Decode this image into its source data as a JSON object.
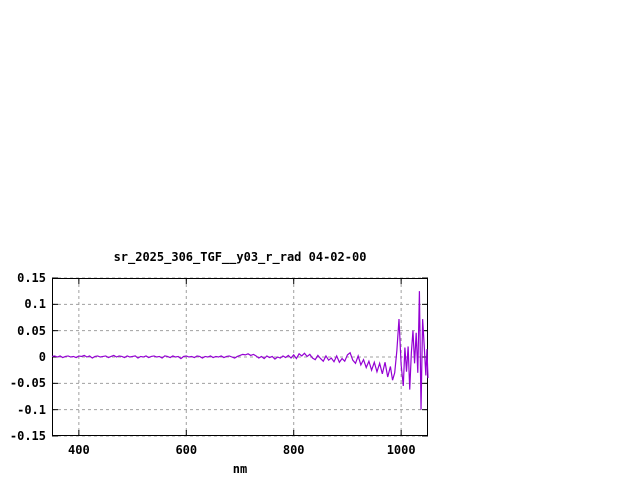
{
  "page": {
    "background": "#ffffff"
  },
  "chart_data": {
    "type": "line",
    "title": "sr_2025_306_TGF__y03_r_rad 04-02-00",
    "xlabel": "nm",
    "ylabel": "",
    "xlim": [
      350,
      1050
    ],
    "ylim": [
      -0.15,
      0.15
    ],
    "xticks": [
      400,
      600,
      800,
      1000
    ],
    "xtick_labels": [
      "400",
      "600",
      "800",
      "1000"
    ],
    "yticks": [
      0.15,
      0.1,
      0.05,
      0,
      -0.05,
      -0.1,
      -0.15
    ],
    "ytick_labels": [
      "0.15",
      "0.1",
      "0.05",
      "0",
      "-0.05",
      "-0.1",
      "-0.15"
    ],
    "grid": true,
    "grid_style": "dashed",
    "legend": "none",
    "colors": {
      "line": "#9400d3",
      "grid": "#a0a0a0",
      "frame": "#000000",
      "text": "#000000"
    },
    "series": [
      {
        "name": "sr_2025_306_TGF__y03_r_rad",
        "points": [
          [
            350,
            0.001
          ],
          [
            355,
            0.002
          ],
          [
            360,
            0.0
          ],
          [
            365,
            0.002
          ],
          [
            370,
            -0.001
          ],
          [
            375,
            0.001
          ],
          [
            380,
            0.002
          ],
          [
            385,
            0.0
          ],
          [
            390,
            0.001
          ],
          [
            395,
            -0.001
          ],
          [
            400,
            0.002
          ],
          [
            405,
            0.001
          ],
          [
            410,
            0.003
          ],
          [
            415,
            0.0
          ],
          [
            420,
            0.002
          ],
          [
            425,
            -0.002
          ],
          [
            430,
            0.001
          ],
          [
            435,
            0.002
          ],
          [
            440,
            0.0
          ],
          [
            445,
            0.001
          ],
          [
            450,
            0.002
          ],
          [
            455,
            -0.001
          ],
          [
            460,
            0.001
          ],
          [
            465,
            0.003
          ],
          [
            470,
            0.0
          ],
          [
            475,
            0.002
          ],
          [
            480,
            0.001
          ],
          [
            485,
            -0.001
          ],
          [
            490,
            0.002
          ],
          [
            495,
            0.0
          ],
          [
            500,
            0.001
          ],
          [
            505,
            0.002
          ],
          [
            510,
            -0.002
          ],
          [
            515,
            0.001
          ],
          [
            520,
            0.0
          ],
          [
            525,
            0.002
          ],
          [
            530,
            -0.001
          ],
          [
            535,
            0.001
          ],
          [
            540,
            0.002
          ],
          [
            545,
            0.0
          ],
          [
            550,
            0.001
          ],
          [
            555,
            -0.002
          ],
          [
            560,
            0.002
          ],
          [
            565,
            0.001
          ],
          [
            570,
            -0.001
          ],
          [
            575,
            0.002
          ],
          [
            580,
            0.0
          ],
          [
            585,
            0.001
          ],
          [
            590,
            -0.003
          ],
          [
            595,
            0.001
          ],
          [
            600,
            0.002
          ],
          [
            605,
            0.0
          ],
          [
            610,
            0.001
          ],
          [
            615,
            -0.001
          ],
          [
            620,
            0.002
          ],
          [
            625,
            0.001
          ],
          [
            630,
            -0.002
          ],
          [
            635,
            0.001
          ],
          [
            640,
            0.0
          ],
          [
            645,
            0.002
          ],
          [
            650,
            -0.001
          ],
          [
            655,
            0.001
          ],
          [
            660,
            0.0
          ],
          [
            665,
            0.002
          ],
          [
            670,
            -0.001
          ],
          [
            675,
            0.001
          ],
          [
            680,
            0.002
          ],
          [
            685,
            0.0
          ],
          [
            690,
            -0.002
          ],
          [
            695,
            0.001
          ],
          [
            700,
            0.003
          ],
          [
            705,
            0.005
          ],
          [
            710,
            0.004
          ],
          [
            715,
            0.006
          ],
          [
            720,
            0.003
          ],
          [
            725,
            0.005
          ],
          [
            730,
            0.002
          ],
          [
            735,
            -0.002
          ],
          [
            740,
            0.001
          ],
          [
            745,
            -0.003
          ],
          [
            750,
            0.002
          ],
          [
            755,
            -0.001
          ],
          [
            760,
            0.001
          ],
          [
            765,
            -0.004
          ],
          [
            770,
            0.0
          ],
          [
            775,
            -0.002
          ],
          [
            780,
            0.002
          ],
          [
            785,
            -0.001
          ],
          [
            790,
            0.003
          ],
          [
            795,
            -0.002
          ],
          [
            800,
            0.004
          ],
          [
            805,
            -0.003
          ],
          [
            810,
            0.006
          ],
          [
            815,
            0.002
          ],
          [
            820,
            0.007
          ],
          [
            825,
            0.001
          ],
          [
            830,
            0.005
          ],
          [
            835,
            -0.002
          ],
          [
            840,
            -0.005
          ],
          [
            845,
            0.003
          ],
          [
            850,
            -0.003
          ],
          [
            855,
            -0.008
          ],
          [
            860,
            0.002
          ],
          [
            865,
            -0.006
          ],
          [
            870,
            -0.002
          ],
          [
            875,
            -0.009
          ],
          [
            880,
            0.002
          ],
          [
            885,
            -0.01
          ],
          [
            890,
            -0.003
          ],
          [
            895,
            -0.008
          ],
          [
            900,
            0.004
          ],
          [
            905,
            0.008
          ],
          [
            910,
            -0.006
          ],
          [
            915,
            -0.012
          ],
          [
            920,
            0.002
          ],
          [
            925,
            -0.015
          ],
          [
            930,
            -0.005
          ],
          [
            935,
            -0.02
          ],
          [
            940,
            -0.008
          ],
          [
            945,
            -0.025
          ],
          [
            950,
            -0.01
          ],
          [
            955,
            -0.028
          ],
          [
            960,
            -0.012
          ],
          [
            965,
            -0.032
          ],
          [
            970,
            -0.01
          ],
          [
            975,
            -0.038
          ],
          [
            980,
            -0.018
          ],
          [
            984,
            -0.044
          ],
          [
            988,
            -0.03
          ],
          [
            992,
            0.012
          ],
          [
            996,
            0.072
          ],
          [
            1000,
            -0.015
          ],
          [
            1004,
            -0.055
          ],
          [
            1007,
            0.018
          ],
          [
            1010,
            -0.028
          ],
          [
            1013,
            0.02
          ],
          [
            1016,
            -0.062
          ],
          [
            1019,
            0.008
          ],
          [
            1022,
            0.05
          ],
          [
            1025,
            -0.012
          ],
          [
            1028,
            0.046
          ],
          [
            1031,
            -0.03
          ],
          [
            1034,
            0.125
          ],
          [
            1037,
            -0.1
          ],
          [
            1040,
            0.072
          ],
          [
            1043,
            0.02
          ],
          [
            1046,
            -0.035
          ],
          [
            1048,
            0.015
          ],
          [
            1050,
            -0.04
          ]
        ]
      }
    ]
  }
}
